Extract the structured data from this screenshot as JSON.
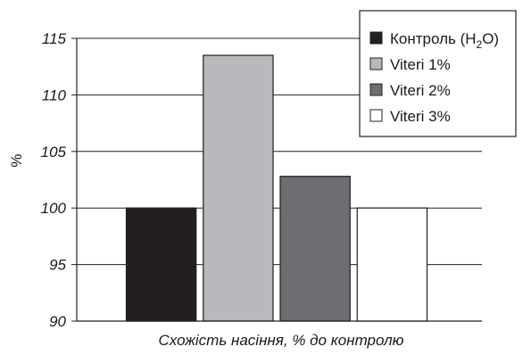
{
  "chart_data": {
    "type": "bar",
    "title": "",
    "xlabel": "Схожість насіння, % до контролю",
    "ylabel": "%",
    "ylim": [
      90,
      115
    ],
    "yticks": [
      90,
      95,
      100,
      105,
      110,
      115
    ],
    "grid": true,
    "legend_position": "top-right",
    "series": [
      {
        "name_main": "Контроль (H",
        "name_sub": "2",
        "name_tail": "O)",
        "value": 100.0,
        "color": "#231f20"
      },
      {
        "name_main": "Viteri 1%",
        "name_sub": "",
        "name_tail": "",
        "value": 113.5,
        "color": "#b8b9bc"
      },
      {
        "name_main": "Viteri 2%",
        "name_sub": "",
        "name_tail": "",
        "value": 102.8,
        "color": "#6d6e71"
      },
      {
        "name_main": "Viteri 3%",
        "name_sub": "",
        "name_tail": "",
        "value": 100.0,
        "color": "#ffffff"
      }
    ]
  }
}
